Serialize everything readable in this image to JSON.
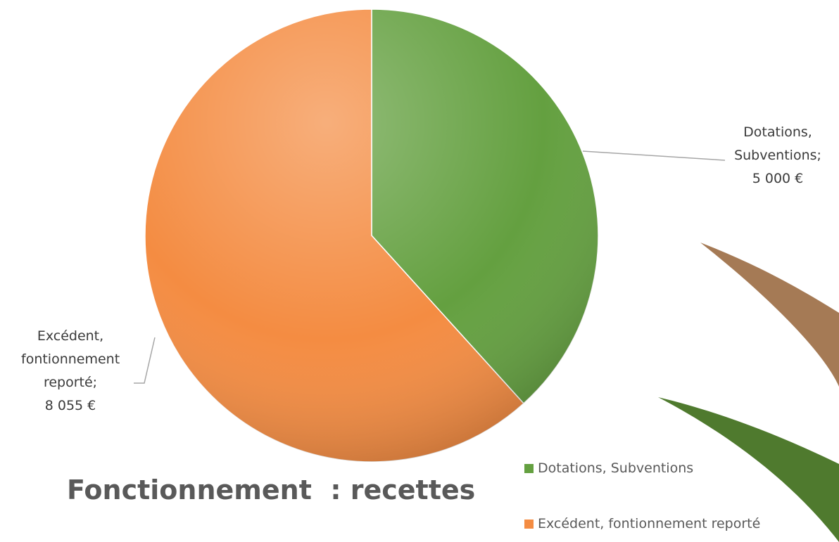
{
  "chart_data": {
    "type": "pie",
    "title": "Fonctionnement  : recettes",
    "categories": [
      "Dotations, Subventions",
      "Excédent, fontionnement reporté"
    ],
    "values": [
      5000,
      8055
    ],
    "value_labels": [
      "5 000 €",
      "8 055 €"
    ],
    "label_names": [
      "Dotations, Subventions;",
      "Excédent, fontionnement reporté;"
    ],
    "colors": [
      "#64a040",
      "#f48c42"
    ],
    "legend": "bottom-right"
  }
}
